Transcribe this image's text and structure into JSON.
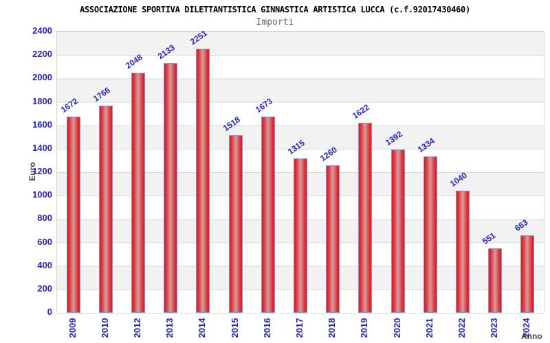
{
  "chart_data": {
    "type": "bar",
    "title": "ASSOCIAZIONE SPORTIVA DILETTANTISTICA GINNASTICA ARTISTICA LUCCA (c.f.92017430460)",
    "subtitle": "Importi",
    "xlabel": "Anno",
    "ylabel": "Euro",
    "categories": [
      "2009",
      "2010",
      "2012",
      "2013",
      "2014",
      "2015",
      "2016",
      "2017",
      "2018",
      "2019",
      "2020",
      "2021",
      "2022",
      "2023",
      "2024"
    ],
    "values": [
      1672,
      1766,
      2048,
      2133,
      2251,
      1518,
      1673,
      1315,
      1260,
      1622,
      1392,
      1334,
      1040,
      551,
      663
    ],
    "ylim": [
      0,
      2400
    ],
    "yticks": [
      0,
      200,
      400,
      600,
      800,
      1000,
      1200,
      1400,
      1600,
      1800,
      2000,
      2200,
      2400
    ],
    "legend": "none",
    "grid": "horizontal gridlines every 200 with alternating gray/white background bands",
    "value_label_rotation_deg": -35,
    "category_label_rotation_deg": -90,
    "colors": {
      "label_blue": "#2323cd",
      "bar_red": "#ed1c24",
      "bar_center": "#c9a1a1",
      "bar_border": "#5aa7ee",
      "band_gray": "#f2f2f2",
      "grid_line": "#d9d9d9",
      "plot_border": "#d4d4d4",
      "title_color": "#000000",
      "subtitle_color": "#666666",
      "axis_title_color": "#404040"
    }
  }
}
